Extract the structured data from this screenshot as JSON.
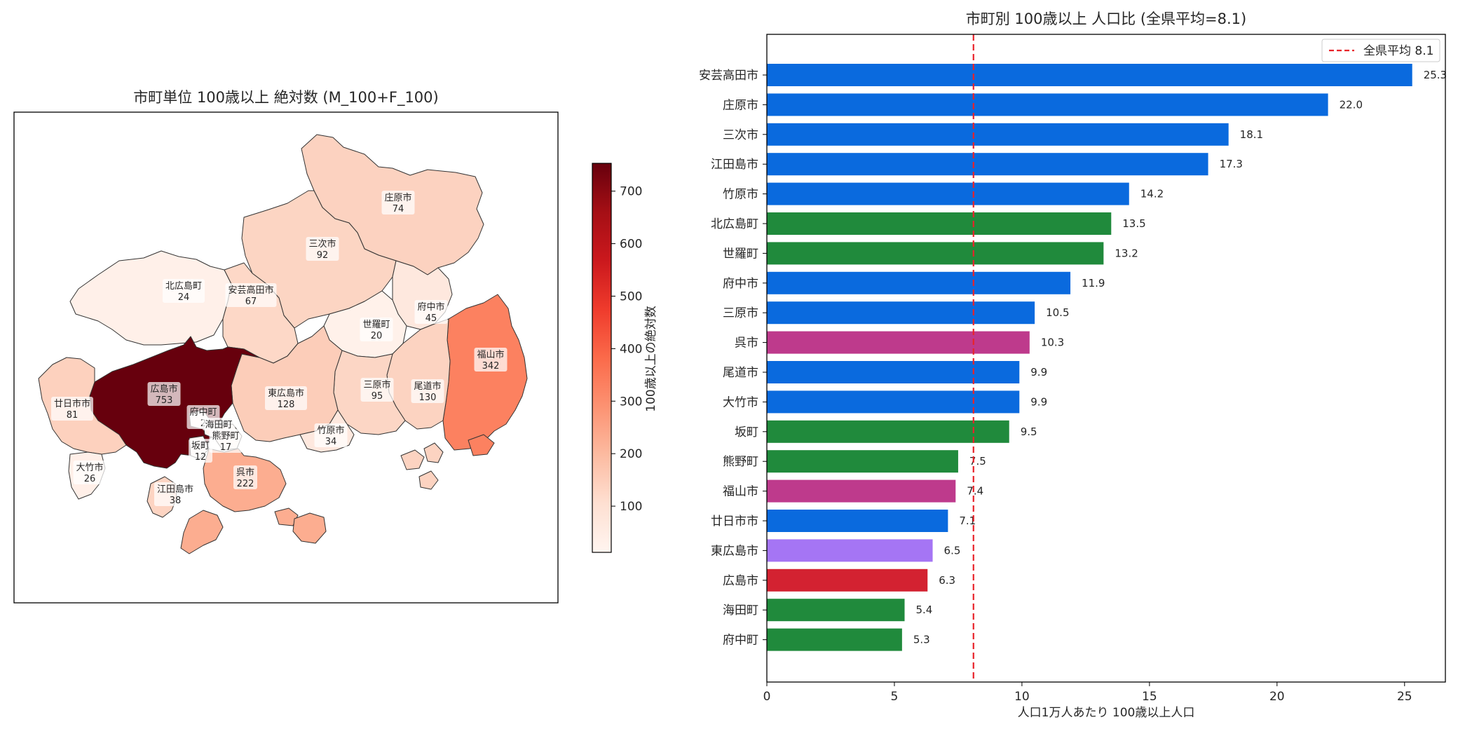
{
  "map_panel": {
    "title": "市町単位 100歳以上 絶対数 (M_100+F_100)",
    "colorbar_label": "100歳以上の絶対数",
    "colorbar_ticks": [
      100,
      200,
      300,
      400,
      500,
      600,
      700
    ],
    "colorbar_range": [
      12,
      753
    ],
    "colormap": "Reds",
    "labels": [
      {
        "name": "庄原市",
        "value": "74"
      },
      {
        "name": "三次市",
        "value": "92"
      },
      {
        "name": "北広島町",
        "value": "24"
      },
      {
        "name": "安芸高田市",
        "value": "67"
      },
      {
        "name": "府中市",
        "value": "45"
      },
      {
        "name": "世羅町",
        "value": "20"
      },
      {
        "name": "福山市",
        "value": "342"
      },
      {
        "name": "広島市",
        "value": "753"
      },
      {
        "name": "東広島市",
        "value": "128"
      },
      {
        "name": "三原市",
        "value": "95"
      },
      {
        "name": "尾道市",
        "value": "130"
      },
      {
        "name": "廿日市市",
        "value": "81"
      },
      {
        "name": "府中町",
        "value": "2"
      },
      {
        "name": "海田町",
        "value": ""
      },
      {
        "name": "熊野町",
        "value": "17"
      },
      {
        "name": "坂町",
        "value": "12"
      },
      {
        "name": "竹原市",
        "value": "34"
      },
      {
        "name": "大竹市",
        "value": "26"
      },
      {
        "name": "呉市",
        "value": "222"
      },
      {
        "name": "江田島市",
        "value": "38"
      }
    ]
  },
  "chart_data": {
    "type": "bar",
    "orientation": "horizontal",
    "title": "市町別 100歳以上 人口比 (全県平均=8.1)",
    "xlabel": "人口1万人あたり 100歳以上人口",
    "ylabel": "",
    "xlim": [
      0,
      26.6
    ],
    "xticks": [
      0,
      5,
      10,
      15,
      20,
      25
    ],
    "categories": [
      "安芸高田市",
      "庄原市",
      "三次市",
      "江田島市",
      "竹原市",
      "北広島町",
      "世羅町",
      "府中市",
      "三原市",
      "呉市",
      "尾道市",
      "大竹市",
      "坂町",
      "熊野町",
      "福山市",
      "廿日市市",
      "東広島市",
      "広島市",
      "海田町",
      "府中町"
    ],
    "values": [
      25.3,
      22.0,
      18.1,
      17.3,
      14.2,
      13.5,
      13.2,
      11.9,
      10.5,
      10.3,
      9.9,
      9.9,
      9.5,
      7.5,
      7.4,
      7.1,
      6.5,
      6.3,
      5.4,
      5.3
    ],
    "value_labels": [
      "25.3",
      "22.0",
      "18.1",
      "17.3",
      "14.2",
      "13.5",
      "13.2",
      "11.9",
      "10.5",
      "10.3",
      "9.9",
      "9.9",
      "9.5",
      "7.5",
      "7.4",
      "7.1",
      "6.5",
      "6.3",
      "5.4",
      "5.3"
    ],
    "bar_colors": [
      "#0a6ade",
      "#0a6ade",
      "#0a6ade",
      "#0a6ade",
      "#0a6ade",
      "#208a3c",
      "#208a3c",
      "#0a6ade",
      "#0a6ade",
      "#be3a8c",
      "#0a6ade",
      "#0a6ade",
      "#208a3c",
      "#208a3c",
      "#be3a8c",
      "#0a6ade",
      "#a575f4",
      "#d32231",
      "#208a3c",
      "#208a3c"
    ],
    "reference_line": {
      "value": 8.1,
      "color": "#e8232a",
      "style": "dashed"
    },
    "legend": {
      "entries": [
        "全県平均 8.1"
      ],
      "position": "top-right"
    },
    "grid": false
  }
}
